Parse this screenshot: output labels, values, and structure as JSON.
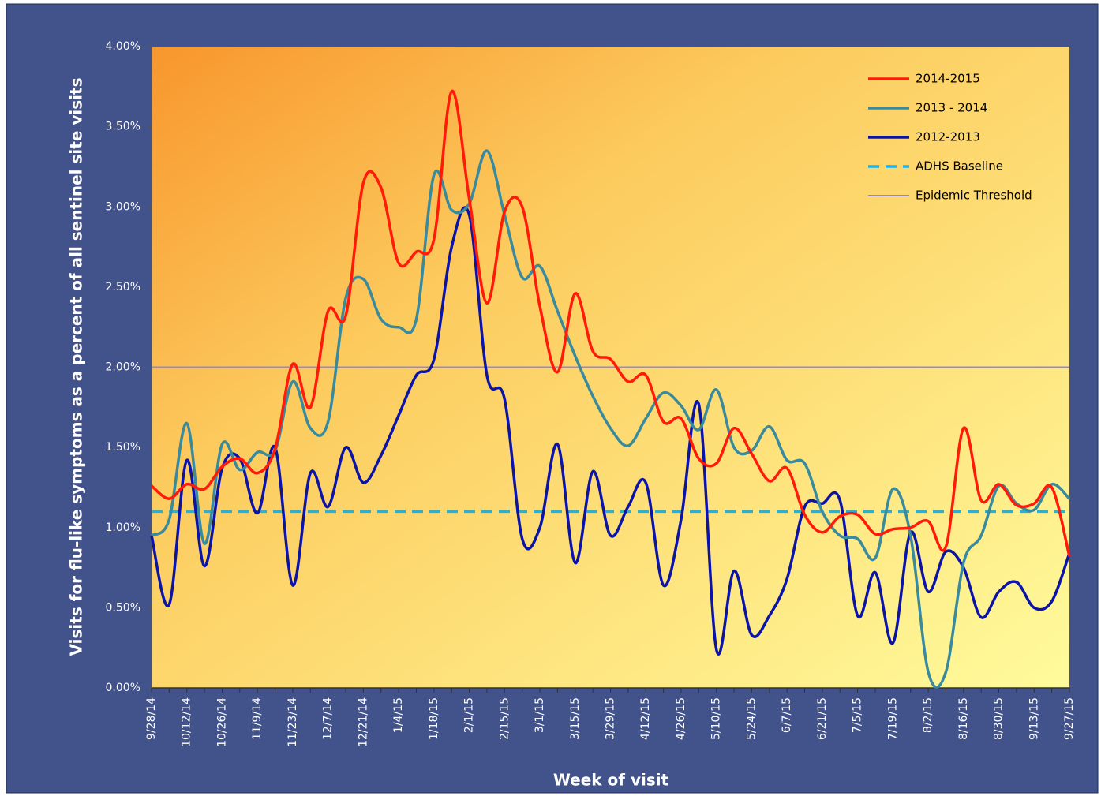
{
  "chart_data": {
    "type": "line",
    "y_label": "Visits for flu-like symptoms as a percent of all sentinel site visits",
    "x_label": "Week of visit",
    "categories": [
      "9/28/14",
      null,
      "10/12/14",
      null,
      "10/26/14",
      null,
      "11/9/14",
      null,
      "11/23/14",
      null,
      "12/7/14",
      null,
      "12/21/14",
      null,
      "1/4/15",
      null,
      "1/18/15",
      null,
      "2/1/15",
      null,
      "2/15/15",
      null,
      "3/1/15",
      null,
      "3/15/15",
      null,
      "3/29/15",
      null,
      "4/12/15",
      null,
      "4/26/15",
      null,
      "5/10/15",
      null,
      "5/24/15",
      null,
      "6/7/15",
      null,
      "6/21/15",
      null,
      "7/5/15",
      null,
      "7/19/15",
      null,
      "8/2/15",
      null,
      "8/16/15",
      null,
      "8/30/15",
      null,
      "9/13/15",
      null,
      "9/27/15"
    ],
    "series": [
      {
        "name": "2014-2015",
        "color": "#ff1a0a",
        "values": [
          1.26,
          1.18,
          1.27,
          1.24,
          1.38,
          1.43,
          1.34,
          1.49,
          2.02,
          1.75,
          2.35,
          2.32,
          3.15,
          3.12,
          2.65,
          2.72,
          2.8,
          3.72,
          3.05,
          2.4,
          2.97,
          3.0,
          2.38,
          1.97,
          2.46,
          2.1,
          2.05,
          1.91,
          1.95,
          1.66,
          1.68,
          1.43,
          1.4,
          1.62,
          1.46,
          1.29,
          1.37,
          1.08,
          0.97,
          1.07,
          1.08,
          0.96,
          0.99,
          1.0,
          1.04,
          0.88,
          1.62,
          1.17,
          1.27,
          1.14,
          1.15,
          1.25,
          0.82
        ]
      },
      {
        "name": "2013 - 2014",
        "color": "#3a8a9e",
        "values": [
          0.95,
          1.05,
          1.65,
          0.9,
          1.52,
          1.36,
          1.47,
          1.48,
          1.91,
          1.62,
          1.66,
          2.43,
          2.55,
          2.3,
          2.25,
          2.3,
          3.2,
          2.98,
          3.02,
          3.35,
          2.95,
          2.56,
          2.63,
          2.35,
          2.07,
          1.82,
          1.62,
          1.51,
          1.68,
          1.84,
          1.76,
          1.61,
          1.86,
          1.5,
          1.48,
          1.63,
          1.42,
          1.4,
          1.1,
          0.95,
          0.93,
          0.81,
          1.24,
          0.95,
          0.1,
          0.1,
          0.78,
          0.95,
          1.26,
          1.15,
          1.11,
          1.27,
          1.18
        ]
      },
      {
        "name": "2012-2013",
        "color": "#0c14a8",
        "values": [
          0.95,
          0.52,
          1.42,
          0.76,
          1.37,
          1.43,
          1.09,
          1.5,
          0.64,
          1.34,
          1.13,
          1.5,
          1.28,
          1.45,
          1.7,
          1.95,
          2.05,
          2.75,
          2.95,
          1.95,
          1.8,
          0.93,
          1.0,
          1.52,
          0.78,
          1.35,
          0.95,
          1.13,
          1.28,
          0.64,
          1.05,
          1.77,
          0.24,
          0.73,
          0.33,
          0.45,
          0.68,
          1.13,
          1.15,
          1.17,
          0.45,
          0.72,
          0.28,
          0.97,
          0.6,
          0.85,
          0.75,
          0.44,
          0.6,
          0.66,
          0.5,
          0.54,
          0.84
        ]
      }
    ],
    "reference_lines": [
      {
        "name": "ADHS Baseline",
        "color": "#1cb4e8",
        "dashed": true,
        "value": 1.1
      },
      {
        "name": "Epidemic Threshold",
        "color": "#9a88c0",
        "dashed": false,
        "value": 2.0
      }
    ],
    "ylim": [
      0,
      4
    ],
    "yticks": [
      {
        "value": 0,
        "label": "0.00%"
      },
      {
        "value": 0.5,
        "label": "0.50%"
      },
      {
        "value": 1,
        "label": "1.00%"
      },
      {
        "value": 1.5,
        "label": "1.50%"
      },
      {
        "value": 2,
        "label": "2.00%"
      },
      {
        "value": 2.5,
        "label": "2.50%"
      },
      {
        "value": 3,
        "label": "3.00%"
      },
      {
        "value": 3.5,
        "label": "3.50%"
      },
      {
        "value": 4,
        "label": "4.00%"
      }
    ],
    "legend": "top-right",
    "grid": false
  }
}
